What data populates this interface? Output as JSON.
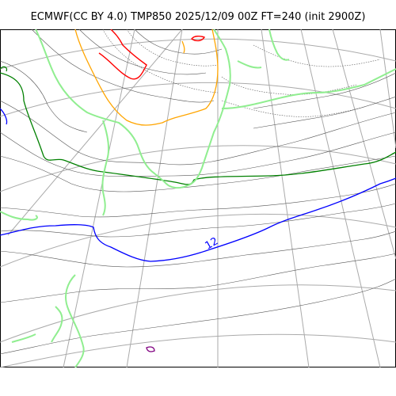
{
  "header": {
    "title": "ECMWF(CC BY 4.0) TMP850 2025/12/09 00Z FT=240 (init 2900Z)"
  },
  "map": {
    "contour_labels": [
      "12"
    ],
    "colors": {
      "graticule": "#aaaaaa",
      "coastline": "#90ee90",
      "isotherm_thin": "#555555",
      "isotherm_0": "#ffa500",
      "isotherm_minus": "#ff0000",
      "isotherm_6": "#008000",
      "isotherm_12": "#0000ff",
      "isotherm_18": "#800080"
    }
  }
}
